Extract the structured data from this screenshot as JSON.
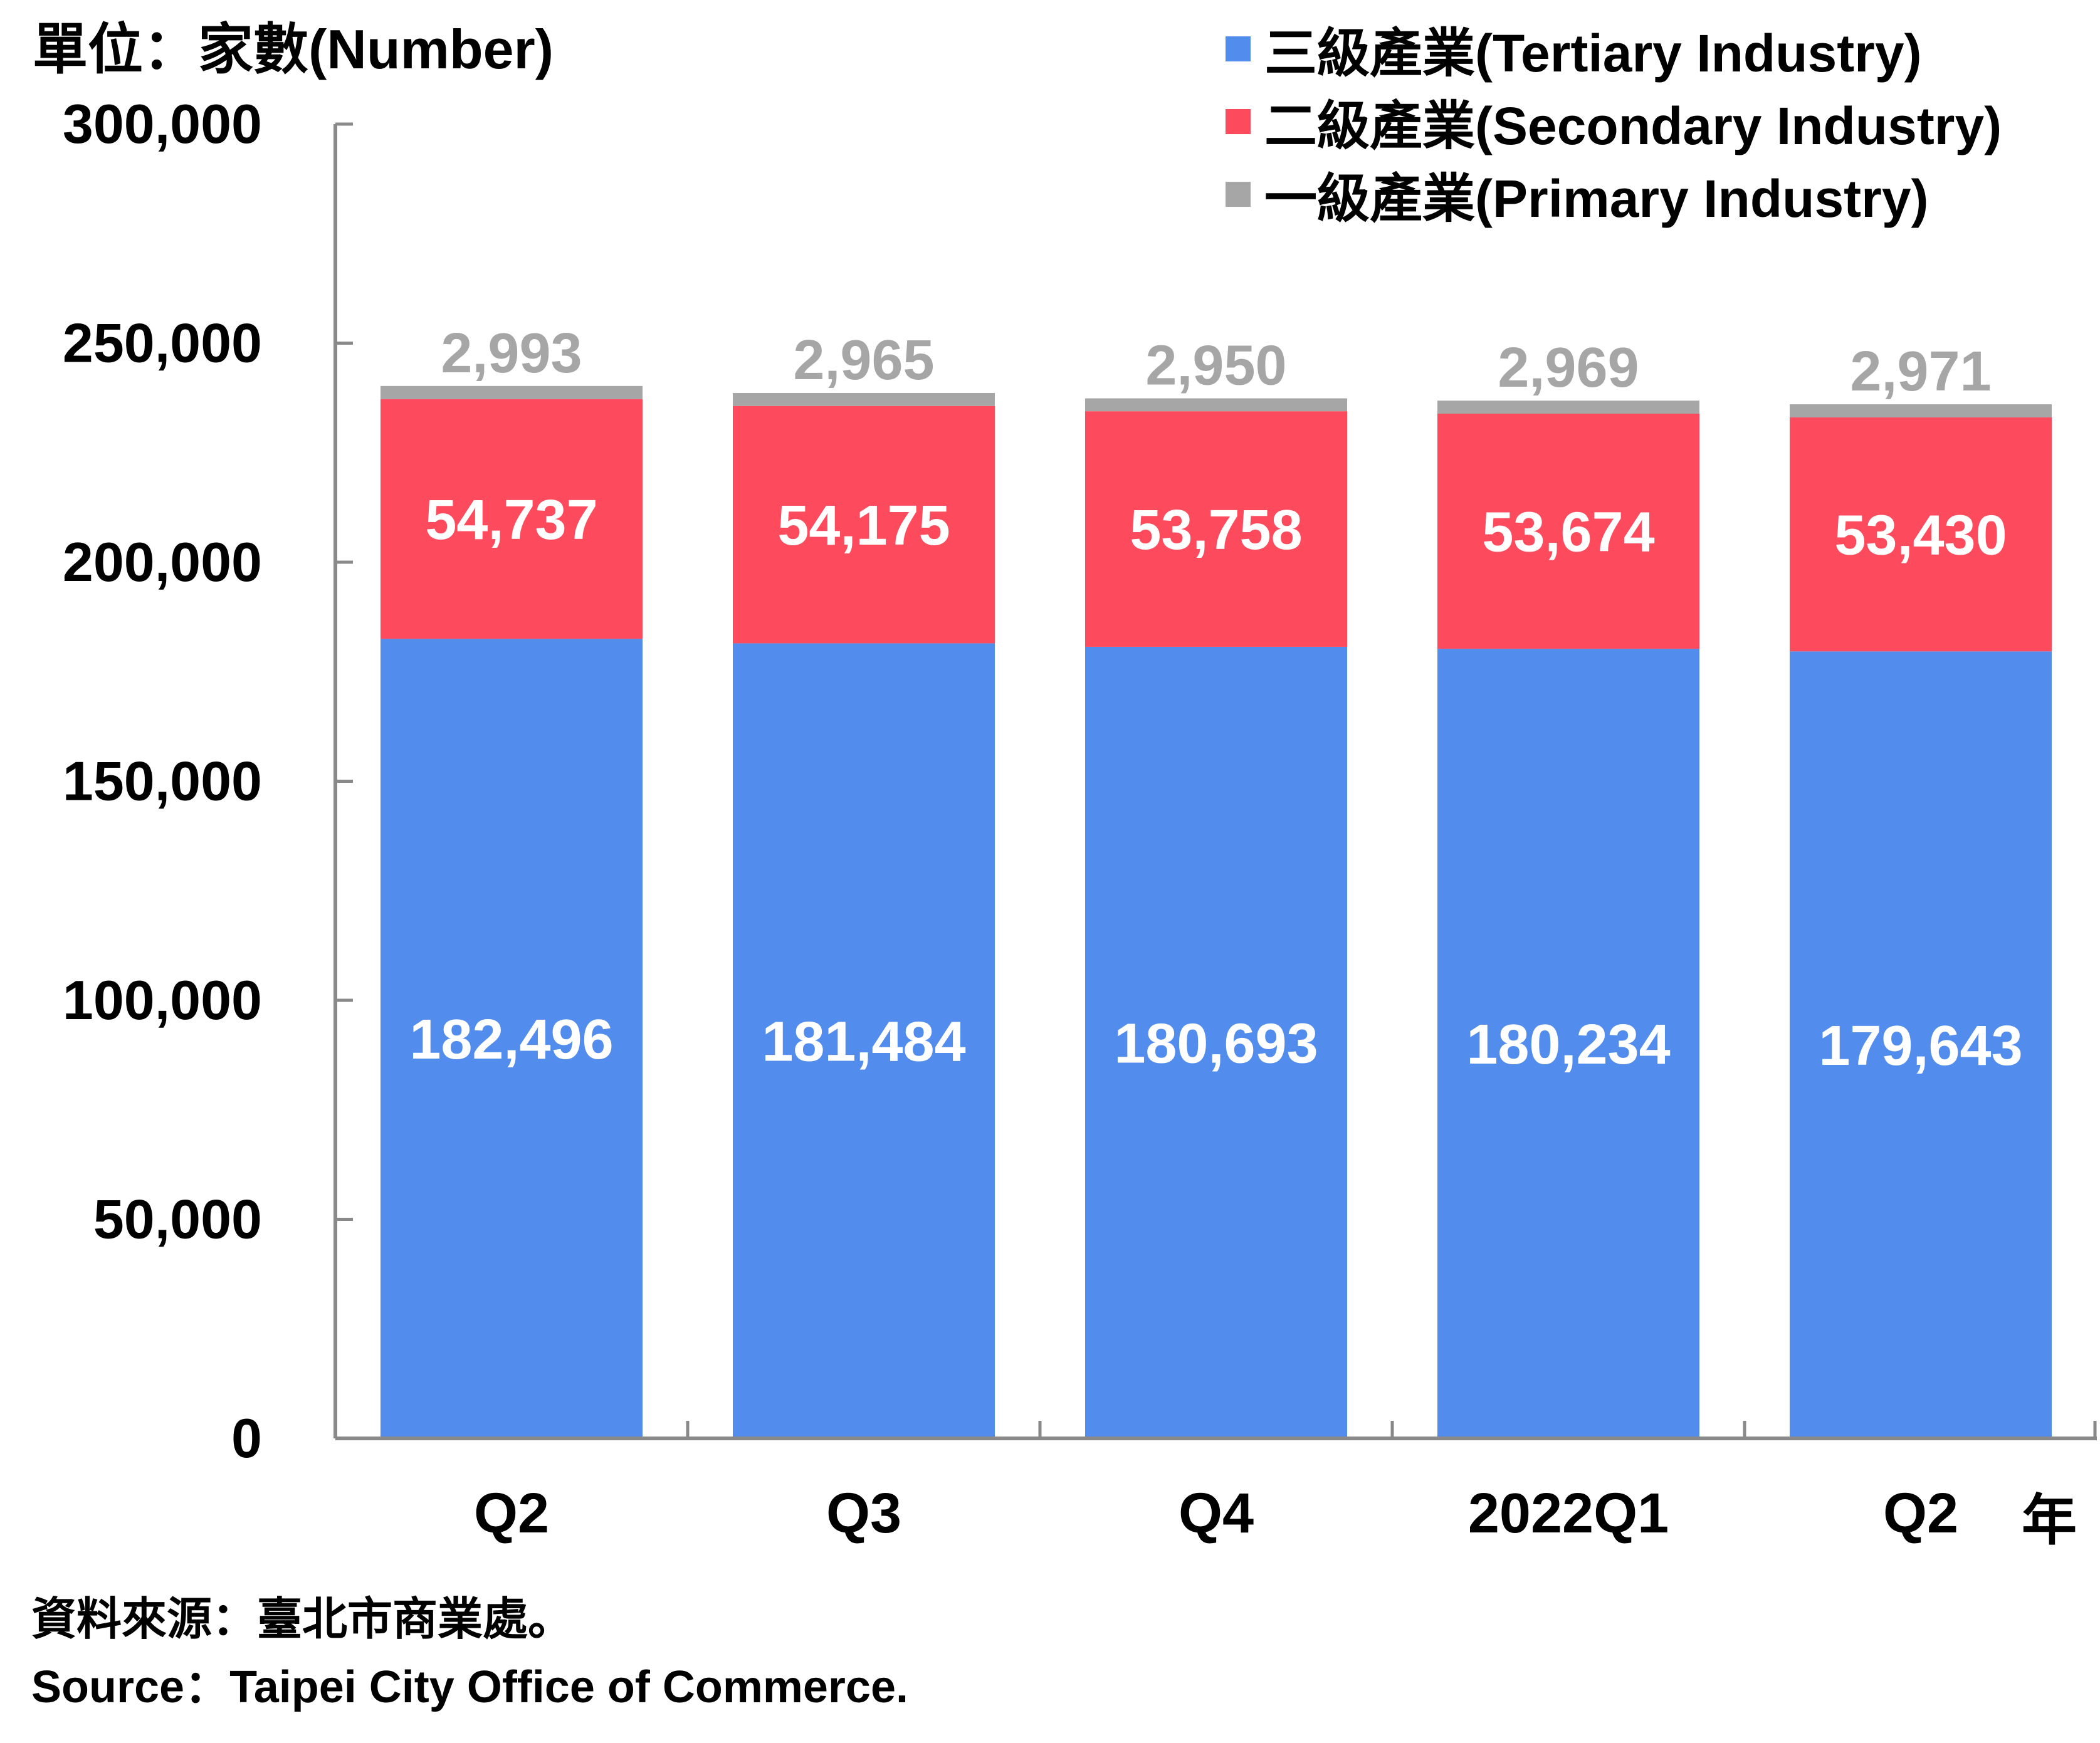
{
  "unit_label": "單位：家數(Number)",
  "source": {
    "line1": "資料來源：臺北市商業處。",
    "line2": "Source：Taipei City Office of Commerce."
  },
  "x_axis_suffix": "年",
  "colors": {
    "tertiary": "#528ded",
    "secondary": "#fd4a5c",
    "primary": "#a6a6a6",
    "axis": "#898989"
  },
  "chart_data": {
    "type": "bar",
    "stacked": true,
    "categories": [
      "Q2",
      "Q3",
      "Q4",
      "2022Q1",
      "Q2"
    ],
    "series": [
      {
        "name": "三級產業(Tertiary Industry)",
        "values": [
          182496,
          181484,
          180693,
          180234,
          179643
        ]
      },
      {
        "name": "二級產業(Secondary Industry)",
        "values": [
          54737,
          54175,
          53758,
          53674,
          53430
        ]
      },
      {
        "name": "一級產業(Primary Industry)",
        "values": [
          2993,
          2965,
          2950,
          2969,
          2971
        ]
      }
    ],
    "ylim": [
      0,
      300000
    ],
    "yticks": [
      "0",
      "50,000",
      "100,000",
      "150,000",
      "200,000",
      "250,000",
      "300,000"
    ],
    "legend_position": "top-right",
    "grid": false
  }
}
